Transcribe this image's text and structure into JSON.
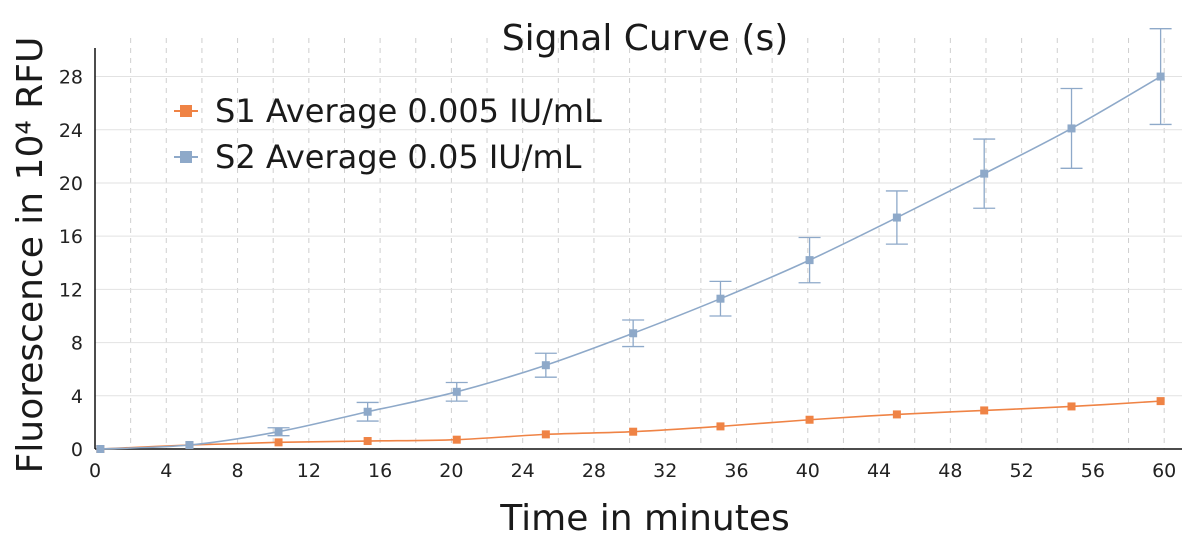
{
  "chart_data": {
    "type": "line",
    "title": "Signal Curve (s)",
    "xlabel": "Time in minutes",
    "ylabel": "Fluorescence in 10⁴ RFU",
    "xlim": [
      0,
      61
    ],
    "ylim": [
      0,
      31.5
    ],
    "xticks": [
      0,
      4,
      8,
      12,
      16,
      20,
      24,
      28,
      32,
      36,
      40,
      44,
      48,
      52,
      56,
      60
    ],
    "yticks": [
      0,
      4,
      8,
      12,
      16,
      20,
      24,
      28
    ],
    "grid": {
      "vertical": "dashed",
      "horizontal": "solid"
    },
    "legend_position": "top-left",
    "series": [
      {
        "name": "S1 Average 0.005 IU/mL",
        "color": "#ef8345",
        "x": [
          0.3,
          5.3,
          10.3,
          15.3,
          20.3,
          25.3,
          30.2,
          35.1,
          40.1,
          45.0,
          49.9,
          54.8,
          59.8
        ],
        "y": [
          0.0,
          0.3,
          0.5,
          0.6,
          0.7,
          1.1,
          1.3,
          1.7,
          2.2,
          2.6,
          2.9,
          3.2,
          3.6
        ],
        "errors": [
          0,
          0,
          0,
          0,
          0,
          0,
          0,
          0,
          0,
          0,
          0,
          0,
          0
        ]
      },
      {
        "name": "S2 Average 0.05 IU/mL",
        "color": "#8ea9c9",
        "x": [
          0.3,
          5.3,
          10.3,
          15.3,
          20.3,
          25.3,
          30.2,
          35.1,
          40.1,
          45.0,
          49.9,
          54.8,
          59.8
        ],
        "y": [
          0.0,
          0.3,
          1.3,
          2.8,
          4.3,
          6.3,
          8.7,
          11.3,
          14.2,
          17.4,
          20.7,
          24.1,
          28.0
        ],
        "errors": [
          0,
          0,
          0.3,
          0.7,
          0.7,
          0.9,
          1.0,
          1.3,
          1.7,
          2.0,
          2.6,
          3.0,
          3.6
        ]
      }
    ]
  }
}
